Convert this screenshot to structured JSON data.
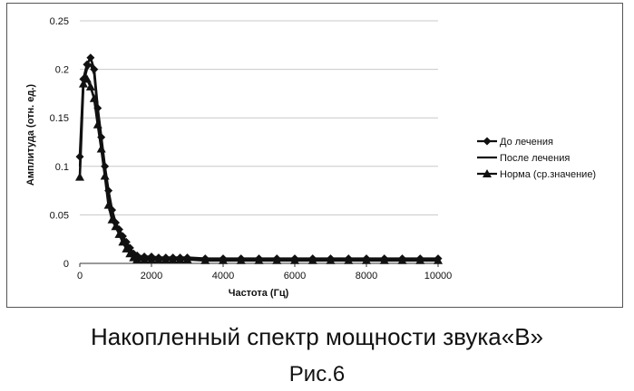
{
  "caption": "Накопленный  спектр мощности звука«B»",
  "figure_label": "Рис.6",
  "chart_data": {
    "type": "line",
    "title": "",
    "xlabel": "Частота (Гц)",
    "ylabel": "Амплитуда (отн. ед.)",
    "xlim": [
      0,
      10000
    ],
    "ylim": [
      0,
      0.25
    ],
    "x_ticks": [
      0,
      2000,
      4000,
      6000,
      8000,
      10000
    ],
    "y_ticks": [
      0,
      0.05,
      0.1,
      0.15,
      0.2,
      0.25
    ],
    "x_tick_labels": [
      "0",
      "2000",
      "4000",
      "6000",
      "8000",
      "10000"
    ],
    "y_tick_labels": [
      "0",
      "0.05",
      "0.1",
      "0.15",
      "0.2",
      "0.25"
    ],
    "grid": "horizontal",
    "legend_position": "right",
    "x": [
      0,
      100,
      200,
      300,
      400,
      500,
      600,
      700,
      800,
      900,
      1000,
      1100,
      1200,
      1300,
      1400,
      1500,
      1600,
      1800,
      2000,
      2200,
      2400,
      2600,
      2800,
      3000,
      3500,
      4000,
      4500,
      5000,
      5500,
      6000,
      6500,
      7000,
      7500,
      8000,
      8500,
      9000,
      9500,
      10000
    ],
    "series": [
      {
        "name": "До лечения",
        "marker": "diamond",
        "color": "#111111",
        "values": [
          0.11,
          0.19,
          0.205,
          0.212,
          0.2,
          0.16,
          0.13,
          0.1,
          0.075,
          0.055,
          0.042,
          0.035,
          0.028,
          0.022,
          0.016,
          0.01,
          0.008,
          0.007,
          0.007,
          0.006,
          0.006,
          0.006,
          0.006,
          0.006,
          0.005,
          0.005,
          0.005,
          0.005,
          0.005,
          0.005,
          0.005,
          0.005,
          0.005,
          0.005,
          0.005,
          0.005,
          0.005,
          0.005
        ]
      },
      {
        "name": "После лечения",
        "marker": "none",
        "color": "#111111",
        "values": [
          0.1,
          0.185,
          0.2,
          0.205,
          0.195,
          0.155,
          0.125,
          0.095,
          0.07,
          0.052,
          0.04,
          0.032,
          0.025,
          0.018,
          0.013,
          0.008,
          0.006,
          0.005,
          0.005,
          0.005,
          0.005,
          0.005,
          0.005,
          0.005,
          0.004,
          0.004,
          0.004,
          0.004,
          0.004,
          0.004,
          0.004,
          0.004,
          0.004,
          0.004,
          0.004,
          0.004,
          0.004,
          0.004
        ]
      },
      {
        "name": "Норма (ср.значение)",
        "marker": "triangle",
        "color": "#111111",
        "values": [
          0.089,
          0.185,
          0.19,
          0.182,
          0.17,
          0.143,
          0.118,
          0.09,
          0.06,
          0.045,
          0.038,
          0.03,
          0.022,
          0.015,
          0.01,
          0.006,
          0.004,
          0.004,
          0.004,
          0.004,
          0.004,
          0.004,
          0.004,
          0.004,
          0.003,
          0.003,
          0.003,
          0.003,
          0.003,
          0.003,
          0.003,
          0.003,
          0.003,
          0.003,
          0.003,
          0.003,
          0.003,
          0.003
        ]
      }
    ]
  }
}
